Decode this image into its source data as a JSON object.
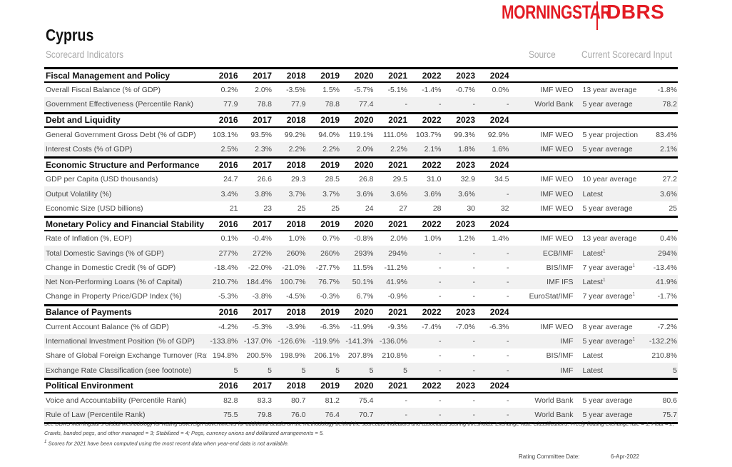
{
  "logo": {
    "brand": "MORNINGSTAR",
    "brand2": "DBRS",
    "color": "#e31b23"
  },
  "title": "Cyprus",
  "subtitle": "Scorecard Indicators",
  "source_header": "Source",
  "input_header": "Current Scorecard Input",
  "sections": [
    {
      "title": "Fiscal Management and Policy",
      "years": [
        "2016",
        "2017",
        "2018",
        "2019",
        "2020",
        "2021",
        "2022",
        "2023",
        "2024"
      ],
      "rows": [
        {
          "label": "Overall Fiscal Balance (% of GDP)",
          "values": [
            "0.2%",
            "2.0%",
            "-3.5%",
            "1.5%",
            "-5.7%",
            "-5.1%",
            "-1.4%",
            "-0.7%",
            "0.0%"
          ],
          "source": "IMF WEO",
          "method": "13 year average",
          "sup": "",
          "input": "-1.8%"
        },
        {
          "label": "Government Effectiveness (Percentile Rank)",
          "values": [
            "77.9",
            "78.8",
            "77.9",
            "78.8",
            "77.4",
            "-",
            "-",
            "-",
            "-"
          ],
          "source": "World Bank",
          "method": "5 year average",
          "sup": "",
          "input": "78.2"
        }
      ]
    },
    {
      "title": "Debt and Liquidity",
      "years": [
        "2016",
        "2017",
        "2018",
        "2019",
        "2020",
        "2021",
        "2022",
        "2023",
        "2024"
      ],
      "rows": [
        {
          "label": "General Government Gross Debt (% of GDP)",
          "values": [
            "103.1%",
            "93.5%",
            "99.2%",
            "94.0%",
            "119.1%",
            "111.0%",
            "103.7%",
            "99.3%",
            "92.9%"
          ],
          "source": "IMF WEO",
          "method": "5 year projection",
          "sup": "",
          "input": "83.4%"
        },
        {
          "label": "Interest Costs (% of GDP)",
          "values": [
            "2.5%",
            "2.3%",
            "2.2%",
            "2.2%",
            "2.0%",
            "2.2%",
            "2.1%",
            "1.8%",
            "1.6%"
          ],
          "source": "IMF WEO",
          "method": "5 year average",
          "sup": "",
          "input": "2.1%"
        }
      ]
    },
    {
      "title": "Economic Structure and Performance",
      "years": [
        "2016",
        "2017",
        "2018",
        "2019",
        "2020",
        "2021",
        "2022",
        "2023",
        "2024"
      ],
      "rows": [
        {
          "label": "GDP per Capita (USD thousands)",
          "values": [
            "24.7",
            "26.6",
            "29.3",
            "28.5",
            "26.8",
            "29.5",
            "31.0",
            "32.9",
            "34.5"
          ],
          "source": "IMF WEO",
          "method": "10 year average",
          "sup": "",
          "input": "27.2"
        },
        {
          "label": "Output Volatility (%)",
          "values": [
            "3.4%",
            "3.8%",
            "3.7%",
            "3.7%",
            "3.6%",
            "3.6%",
            "3.6%",
            "3.6%",
            "-"
          ],
          "source": "IMF WEO",
          "method": "Latest",
          "sup": "",
          "input": "3.6%"
        },
        {
          "label": "Economic Size (USD billions)",
          "values": [
            "21",
            "23",
            "25",
            "25",
            "24",
            "27",
            "28",
            "30",
            "32"
          ],
          "source": "IMF WEO",
          "method": "5 year average",
          "sup": "",
          "input": "25"
        }
      ]
    },
    {
      "title": "Monetary Policy and Financial Stability",
      "years": [
        "2016",
        "2017",
        "2018",
        "2019",
        "2020",
        "2021",
        "2022",
        "2023",
        "2024"
      ],
      "rows": [
        {
          "label": "Rate of Inflation (%, EOP)",
          "values": [
            "0.1%",
            "-0.4%",
            "1.0%",
            "0.7%",
            "-0.8%",
            "2.0%",
            "1.0%",
            "1.2%",
            "1.4%"
          ],
          "source": "IMF WEO",
          "method": "13 year average",
          "sup": "",
          "input": "0.4%"
        },
        {
          "label": "Total Domestic Savings (% of GDP)",
          "values": [
            "277%",
            "272%",
            "260%",
            "260%",
            "293%",
            "294%",
            "-",
            "-",
            "-"
          ],
          "source": "ECB/IMF",
          "method": "Latest",
          "sup": "1",
          "input": "294%"
        },
        {
          "label": "Change in Domestic Credit (% of GDP)",
          "values": [
            "-18.4%",
            "-22.0%",
            "-21.0%",
            "-27.7%",
            "11.5%",
            "-11.2%",
            "-",
            "-",
            "-"
          ],
          "source": "BIS/IMF",
          "method": "7 year average",
          "sup": "1",
          "input": "-13.4%"
        },
        {
          "label": "Net Non-Performing Loans (% of Capital)",
          "values": [
            "210.7%",
            "184.4%",
            "100.7%",
            "76.7%",
            "50.1%",
            "41.9%",
            "-",
            "-",
            "-"
          ],
          "source": "IMF IFS",
          "method": "Latest",
          "sup": "1",
          "input": "41.9%"
        },
        {
          "label": "Change in Property Price/GDP Index (%)",
          "values": [
            "-5.3%",
            "-3.8%",
            "-4.5%",
            "-0.3%",
            "6.7%",
            "-0.9%",
            "-",
            "-",
            "-"
          ],
          "source": "EuroStat/IMF",
          "method": "7 year average",
          "sup": "1",
          "input": "-1.7%"
        }
      ]
    },
    {
      "title": "Balance of Payments",
      "years": [
        "2016",
        "2017",
        "2018",
        "2019",
        "2020",
        "2021",
        "2022",
        "2023",
        "2024"
      ],
      "rows": [
        {
          "label": "Current Account Balance (% of GDP)",
          "values": [
            "-4.2%",
            "-5.3%",
            "-3.9%",
            "-6.3%",
            "-11.9%",
            "-9.3%",
            "-7.4%",
            "-7.0%",
            "-6.3%"
          ],
          "source": "IMF WEO",
          "method": "8 year average",
          "sup": "",
          "input": "-7.2%"
        },
        {
          "label": "International Investment Position (% of GDP)",
          "values": [
            "-133.8%",
            "-137.0%",
            "-126.6%",
            "-119.9%",
            "-141.3%",
            "-136.0%",
            "-",
            "-",
            "-"
          ],
          "source": "IMF",
          "method": "5 year average",
          "sup": "1",
          "input": "-132.2%"
        },
        {
          "label": "Share of Global Foreign Exchange Turnover (Ratio)",
          "values": [
            "194.8%",
            "200.5%",
            "198.9%",
            "206.1%",
            "207.8%",
            "210.8%",
            "-",
            "-",
            "-"
          ],
          "source": "BIS/IMF",
          "method": "Latest",
          "sup": "",
          "input": "210.8%"
        },
        {
          "label": "Exchange Rate Classification (see footnote)",
          "values": [
            "5",
            "5",
            "5",
            "5",
            "5",
            "5",
            "-",
            "-",
            "-"
          ],
          "source": "IMF",
          "method": "Latest",
          "sup": "",
          "input": "5"
        }
      ]
    },
    {
      "title": "Political Environment",
      "years": [
        "2016",
        "2017",
        "2018",
        "2019",
        "2020",
        "2021",
        "2022",
        "2023",
        "2024"
      ],
      "rows": [
        {
          "label": "Voice and Accountability (Percentile Rank)",
          "values": [
            "82.8",
            "83.3",
            "80.7",
            "81.2",
            "75.4",
            "-",
            "-",
            "-",
            "-"
          ],
          "source": "World Bank",
          "method": "5 year average",
          "sup": "",
          "input": "80.6"
        },
        {
          "label": "Rule of Law (Percentile Rank)",
          "values": [
            "75.5",
            "79.8",
            "76.0",
            "76.4",
            "70.7",
            "-",
            "-",
            "-",
            "-"
          ],
          "source": "World Bank",
          "method": "5 year average",
          "sup": "",
          "input": "75.7"
        }
      ]
    }
  ],
  "footnotes": {
    "note1": "See DBRS Morningstar's Global Methodology for Rating Sovereign Governments for additional details on the methodology behind the scorecard indicators and associated scoring thresholds. Exchange Rate Classifications: Freely floating exchange rate = 1; Float = 2; Crawls, banded pegs, and other managed = 3; Stabilized = 4; Pegs, currency unions and dollarized arrangements = 5.",
    "sup": "1",
    "note2": "Scores for 2021 have been computed using the most recent data when year-end data is not available."
  },
  "rating_committee": {
    "label": "Rating Committee Date:",
    "value": "6-Apr-2022"
  }
}
